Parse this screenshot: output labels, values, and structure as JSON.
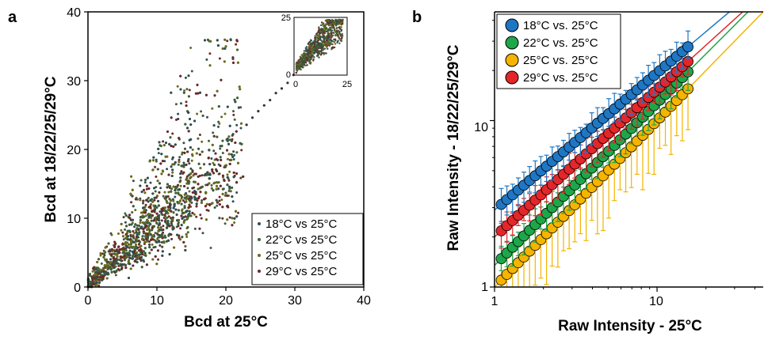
{
  "chart_data": [
    {
      "panel": "a",
      "type": "scatter",
      "xlabel": "Bcd at 25°C",
      "ylabel": "Bcd at 18/22/25/29°C",
      "xlim": [
        0,
        40
      ],
      "ylim": [
        0,
        40
      ],
      "xticks": [
        "0",
        "10",
        "20",
        "30",
        "40"
      ],
      "yticks": [
        "0",
        "10",
        "20",
        "30",
        "40"
      ],
      "legend_position": "bottom-right",
      "series": [
        {
          "name": "18°C vs 25°C",
          "color": "#2f4f4f"
        },
        {
          "name": "22°C vs 25°C",
          "color": "#3f5f3a"
        },
        {
          "name": "25°C vs 25°C",
          "color": "#6b6b1f"
        },
        {
          "name": "29°C vs 25°C",
          "color": "#6b2a2a"
        }
      ],
      "inset": {
        "xlim": [
          0,
          25
        ],
        "ylim": [
          0,
          25
        ],
        "xticks": [
          "0",
          "25"
        ],
        "yticks": [
          "0",
          "25"
        ]
      }
    },
    {
      "panel": "b",
      "type": "scatter",
      "xlabel": "Raw Intensity - 25°C",
      "ylabel": "Raw Intensity - 18/22/25/29°C",
      "xscale": "log",
      "yscale": "log",
      "xlim": [
        1,
        45
      ],
      "ylim": [
        1,
        45
      ],
      "xticks": [
        "1",
        "10"
      ],
      "yticks": [
        "1",
        "10"
      ],
      "legend_position": "top-left",
      "series": [
        {
          "name": "18°C vs. 25°C",
          "color": "#1f77c4",
          "x_start": 1.1,
          "x_end": 15.5,
          "y_at_x1": 2.9,
          "y_at_x15": 27
        },
        {
          "name": "22°C vs. 25°C",
          "color": "#1ea64a",
          "x_start": 1.1,
          "x_end": 15.5,
          "y_at_x1": 1.35,
          "y_at_x15": 19
        },
        {
          "name": "25°C vs. 25°C",
          "color": "#f4b400",
          "x_start": 1.1,
          "x_end": 15.5,
          "y_at_x1": 1.0,
          "y_at_x15": 15
        },
        {
          "name": "29°C vs. 25°C",
          "color": "#e3262a",
          "x_start": 1.1,
          "x_end": 15.5,
          "y_at_x1": 2.0,
          "y_at_x15": 22
        }
      ]
    }
  ],
  "panel_letters": [
    "a",
    "b"
  ]
}
